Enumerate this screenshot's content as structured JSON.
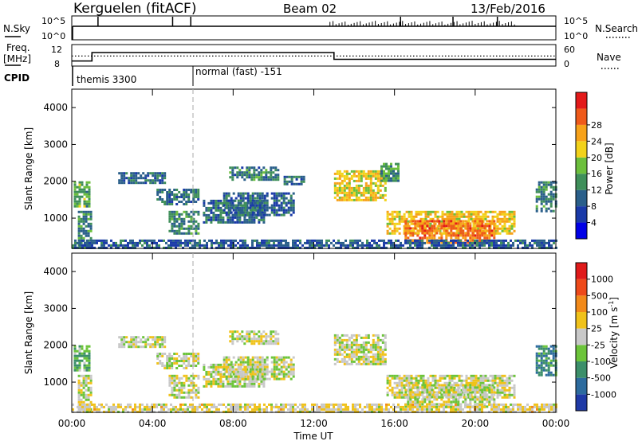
{
  "header": {
    "station": "Kerguelen (fitACF)",
    "beam": "Beam 02",
    "date": "13/Feb/2016"
  },
  "left_labels": {
    "nsky": "N.Sky",
    "freq_line1": "Freq.",
    "freq_line2": "[MHz]",
    "cpid": "CPID"
  },
  "right_labels": {
    "nsearch": "N.Search",
    "nave": "Nave"
  },
  "colors": {
    "scatter_gray": "#c0c0c0",
    "cpid_divider": "#000000"
  },
  "chart_data": [
    {
      "type": "line",
      "panel": "N.Sky / N.Search",
      "y_tick_labels_left": [
        "10^5",
        "10^0"
      ],
      "y_tick_labels_right": [
        "10^5",
        "10^0"
      ],
      "baseline_level": "10^5",
      "spikes_hours": [
        1.3,
        5.0,
        5.9,
        16.3,
        18.9,
        21.1
      ]
    },
    {
      "type": "line",
      "panel": "Freq / Nave",
      "left_ticks": [
        "12",
        "8"
      ],
      "right_ticks": [
        "60",
        "0"
      ],
      "freq_steps": [
        {
          "from_h": 0.0,
          "to_h": 1.0,
          "value": 9.5
        },
        {
          "from_h": 1.0,
          "to_h": 13.0,
          "value": 12.0
        },
        {
          "from_h": 13.0,
          "to_h": 24.0,
          "value": 10.0
        }
      ],
      "nave_dotted_value": 28
    },
    {
      "type": "table",
      "panel": "CPID",
      "programs": [
        {
          "start_h": 0.0,
          "label": "themis 3300"
        },
        {
          "start_h": 6.0,
          "label": "normal (fast) -151"
        }
      ]
    },
    {
      "type": "heatmap",
      "panel": "Power",
      "ylabel": "Slant Range [km]",
      "yticks": [
        "1000",
        "2000",
        "3000",
        "4000"
      ],
      "ylim": [
        180,
        4500
      ],
      "xlim_hours": [
        0,
        24
      ],
      "colorbar_label": "Power [dB]",
      "colorbar_ticks": [
        "4",
        "8",
        "12",
        "16",
        "20",
        "24",
        "28"
      ],
      "colorbar_colors": [
        "#0000e6",
        "#1a3aa8",
        "#2a5f8a",
        "#3f8f5a",
        "#6cbf3c",
        "#f2d21a",
        "#f7a21a",
        "#ef5a1a",
        "#e31a1a"
      ],
      "regions": [
        {
          "t0": 0.1,
          "t1": 0.9,
          "r0": 1300,
          "r1": 2000,
          "level": 0.45
        },
        {
          "t0": 0.3,
          "t1": 0.9,
          "r0": 200,
          "r1": 1200,
          "level": 0.35
        },
        {
          "t0": 2.3,
          "t1": 4.6,
          "r0": 1950,
          "r1": 2250,
          "level": 0.3
        },
        {
          "t0": 4.2,
          "t1": 6.3,
          "r0": 1400,
          "r1": 1800,
          "level": 0.32
        },
        {
          "t0": 4.8,
          "t1": 6.3,
          "r0": 600,
          "r1": 1200,
          "level": 0.35
        },
        {
          "t0": 6.5,
          "t1": 9.5,
          "r0": 900,
          "r1": 1500,
          "level": 0.3
        },
        {
          "t0": 7.5,
          "t1": 11.0,
          "r0": 1100,
          "r1": 1700,
          "level": 0.28
        },
        {
          "t0": 7.8,
          "t1": 10.2,
          "r0": 2050,
          "r1": 2400,
          "level": 0.34
        },
        {
          "t0": 10.5,
          "t1": 11.5,
          "r0": 1900,
          "r1": 2150,
          "level": 0.3
        },
        {
          "t0": 13.0,
          "t1": 15.5,
          "r0": 1500,
          "r1": 2300,
          "level": 0.62
        },
        {
          "t0": 15.3,
          "t1": 16.2,
          "r0": 2000,
          "r1": 2500,
          "level": 0.4
        },
        {
          "t0": 15.6,
          "t1": 22.0,
          "r0": 600,
          "r1": 1200,
          "level": 0.65
        },
        {
          "t0": 16.5,
          "t1": 21.0,
          "r0": 350,
          "r1": 950,
          "level": 0.8
        },
        {
          "t0": 23.0,
          "t1": 24.0,
          "r0": 1200,
          "r1": 2000,
          "level": 0.35
        },
        {
          "t0": 0.0,
          "t1": 24.0,
          "r0": 180,
          "r1": 420,
          "level": 0.25
        }
      ]
    },
    {
      "type": "heatmap",
      "panel": "Velocity",
      "ylabel": "Slant Range [km]",
      "yticks": [
        "1000",
        "2000",
        "3000",
        "4000"
      ],
      "ylim": [
        180,
        4500
      ],
      "xlim_hours": [
        0,
        24
      ],
      "xticks": [
        "00:00",
        "04:00",
        "08:00",
        "12:00",
        "16:00",
        "20:00",
        "00:00"
      ],
      "xlabel": "Time UT",
      "colorbar_label_text": "Velocity  [m s",
      "colorbar_label_sup": "-1",
      "colorbar_label_end": "]",
      "colorbar_ticks": [
        "1000",
        "500",
        "100",
        "25",
        "-25",
        "-100",
        "-500",
        "-1000"
      ],
      "colorbar_colors": [
        "#1f3aa6",
        "#2d6b9e",
        "#3c8f6a",
        "#6cc43a",
        "#c8c8c8",
        "#f0c21a",
        "#f28a1a",
        "#ee4a1a",
        "#e01a1a"
      ],
      "regions": [
        {
          "t0": 0.1,
          "t1": 0.9,
          "r0": 1300,
          "r1": 2000,
          "level": 0.35
        },
        {
          "t0": 0.3,
          "t1": 0.9,
          "r0": 200,
          "r1": 1200,
          "level": 0.5
        },
        {
          "t0": 2.3,
          "t1": 4.6,
          "r0": 1950,
          "r1": 2250,
          "level": 0.5
        },
        {
          "t0": 4.2,
          "t1": 6.3,
          "r0": 1400,
          "r1": 1800,
          "level": 0.5
        },
        {
          "t0": 4.8,
          "t1": 6.3,
          "r0": 600,
          "r1": 1200,
          "level": 0.5
        },
        {
          "t0": 6.5,
          "t1": 9.5,
          "r0": 900,
          "r1": 1500,
          "level": 0.5
        },
        {
          "t0": 7.5,
          "t1": 11.0,
          "r0": 1100,
          "r1": 1700,
          "level": 0.5
        },
        {
          "t0": 7.8,
          "t1": 10.2,
          "r0": 2050,
          "r1": 2400,
          "level": 0.5
        },
        {
          "t0": 13.0,
          "t1": 15.5,
          "r0": 1500,
          "r1": 2300,
          "level": 0.5
        },
        {
          "t0": 15.6,
          "t1": 22.0,
          "r0": 600,
          "r1": 1200,
          "level": 0.5
        },
        {
          "t0": 16.5,
          "t1": 21.0,
          "r0": 350,
          "r1": 950,
          "level": 0.5
        },
        {
          "t0": 23.0,
          "t1": 24.0,
          "r0": 1200,
          "r1": 2000,
          "level": 0.25
        },
        {
          "t0": 0.0,
          "t1": 24.0,
          "r0": 180,
          "r1": 420,
          "level": 0.55
        }
      ]
    }
  ]
}
